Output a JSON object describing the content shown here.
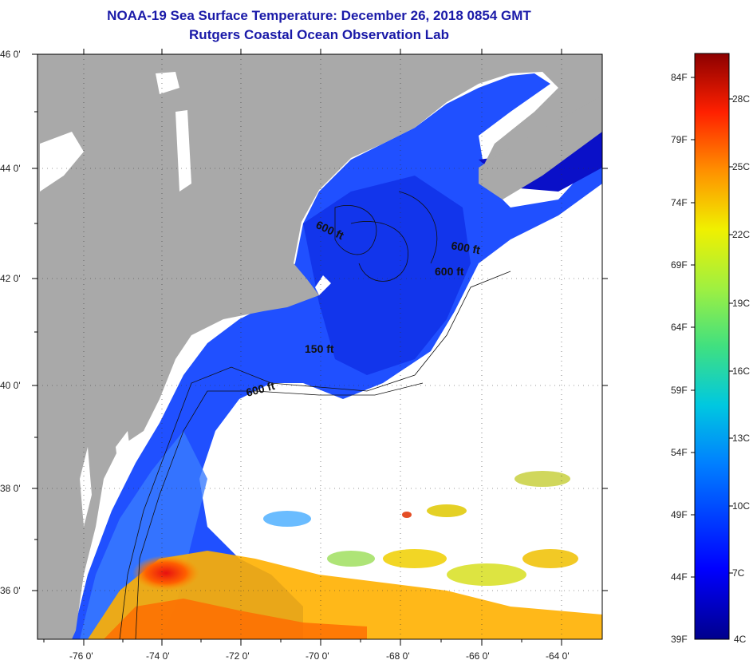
{
  "title": "NOAA-19 Sea Surface Temperature:  December 26, 2018 0854 GMT",
  "subtitle": "Rutgers Coastal Ocean Observation Lab",
  "lat_labels": [
    "46 0'",
    "44 0'",
    "42 0'",
    "40 0'",
    "38 0'",
    "36 0'"
  ],
  "lon_labels": [
    "-76 0'",
    "-74 0'",
    "-72 0'",
    "-70 0'",
    "-68 0'",
    "-66 0'",
    "-64 0'"
  ],
  "contour_labels": [
    "600 ft",
    "600 ft",
    "600 ft",
    "150 ft",
    "600 ft"
  ],
  "colorbar": {
    "f_labels": [
      "84F",
      "79F",
      "74F",
      "69F",
      "64F",
      "59F",
      "54F",
      "49F",
      "44F",
      "39F"
    ],
    "c_labels": [
      "28C",
      "25C",
      "22C",
      "19C",
      "16C",
      "13C",
      "10C",
      "7C",
      "4C"
    ]
  },
  "colors": {
    "land": "#a9a9a9",
    "cloud": "#ffffff",
    "title": "#1a1aa8"
  }
}
